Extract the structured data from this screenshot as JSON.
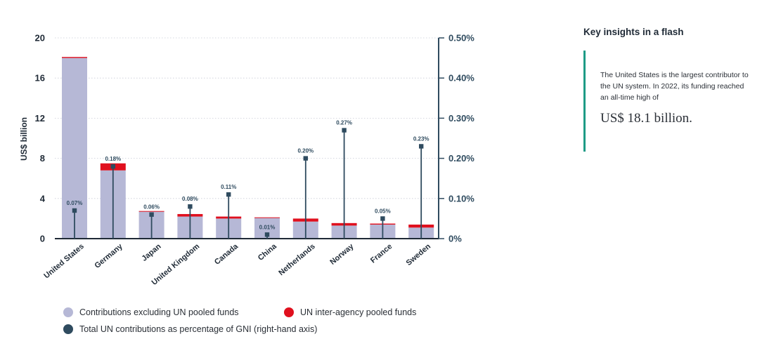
{
  "chart_data": {
    "type": "bar",
    "stacked": true,
    "categories": [
      "United States",
      "Germany",
      "Japan",
      "United Kingdom",
      "Canada",
      "China",
      "Netherlands",
      "Norway",
      "France",
      "Sweden"
    ],
    "series": [
      {
        "name": "Contributions excluding UN pooled funds",
        "color": "#b6b8d6",
        "values": [
          18.0,
          6.8,
          2.7,
          2.2,
          2.0,
          2.1,
          1.7,
          1.3,
          1.4,
          1.1
        ]
      },
      {
        "name": "UN inter-agency pooled funds",
        "color": "#e0101e",
        "values": [
          0.1,
          0.7,
          0.05,
          0.25,
          0.2,
          0.02,
          0.3,
          0.25,
          0.1,
          0.3
        ]
      }
    ],
    "gni_series": {
      "name": "Total UN contributions as percentage of GNI (right-hand axis)",
      "color": "#2f4b5f",
      "values": [
        0.07,
        0.18,
        0.06,
        0.08,
        0.11,
        0.01,
        0.2,
        0.27,
        0.05,
        0.23
      ],
      "labels": [
        "0.07%",
        "0.18%",
        "0.06%",
        "0.08%",
        "0.11%",
        "0.01%",
        "0.20%",
        "0.27%",
        "0.05%",
        "0.23%"
      ]
    },
    "ylabel": "US$ billion",
    "ylim": [
      0,
      20
    ],
    "yticks": [
      "0",
      "4",
      "8",
      "12",
      "16",
      "20"
    ],
    "y2lim": [
      0,
      0.5
    ],
    "y2ticks": [
      "0%",
      "0.10%",
      "0.20%",
      "0.30%",
      "0.40%",
      "0.50%"
    ],
    "grid": "horizontal dotted",
    "legend_position": "bottom-left"
  },
  "legend": {
    "items": [
      {
        "label": "Contributions excluding UN pooled funds",
        "color": "#b6b8d6"
      },
      {
        "label": "UN inter-agency pooled funds",
        "color": "#e0101e"
      },
      {
        "label": "Total UN contributions as percentage of GNI (right-hand axis)",
        "color": "#2f4b5f"
      }
    ]
  },
  "insights": {
    "title": "Key insights in a flash",
    "text": "The United States is the largest contributor to the UN system. In 2022, its funding reached an all-time high of",
    "highlight": "US$ 18.1 billion.",
    "accent_color": "#1e9b86"
  }
}
